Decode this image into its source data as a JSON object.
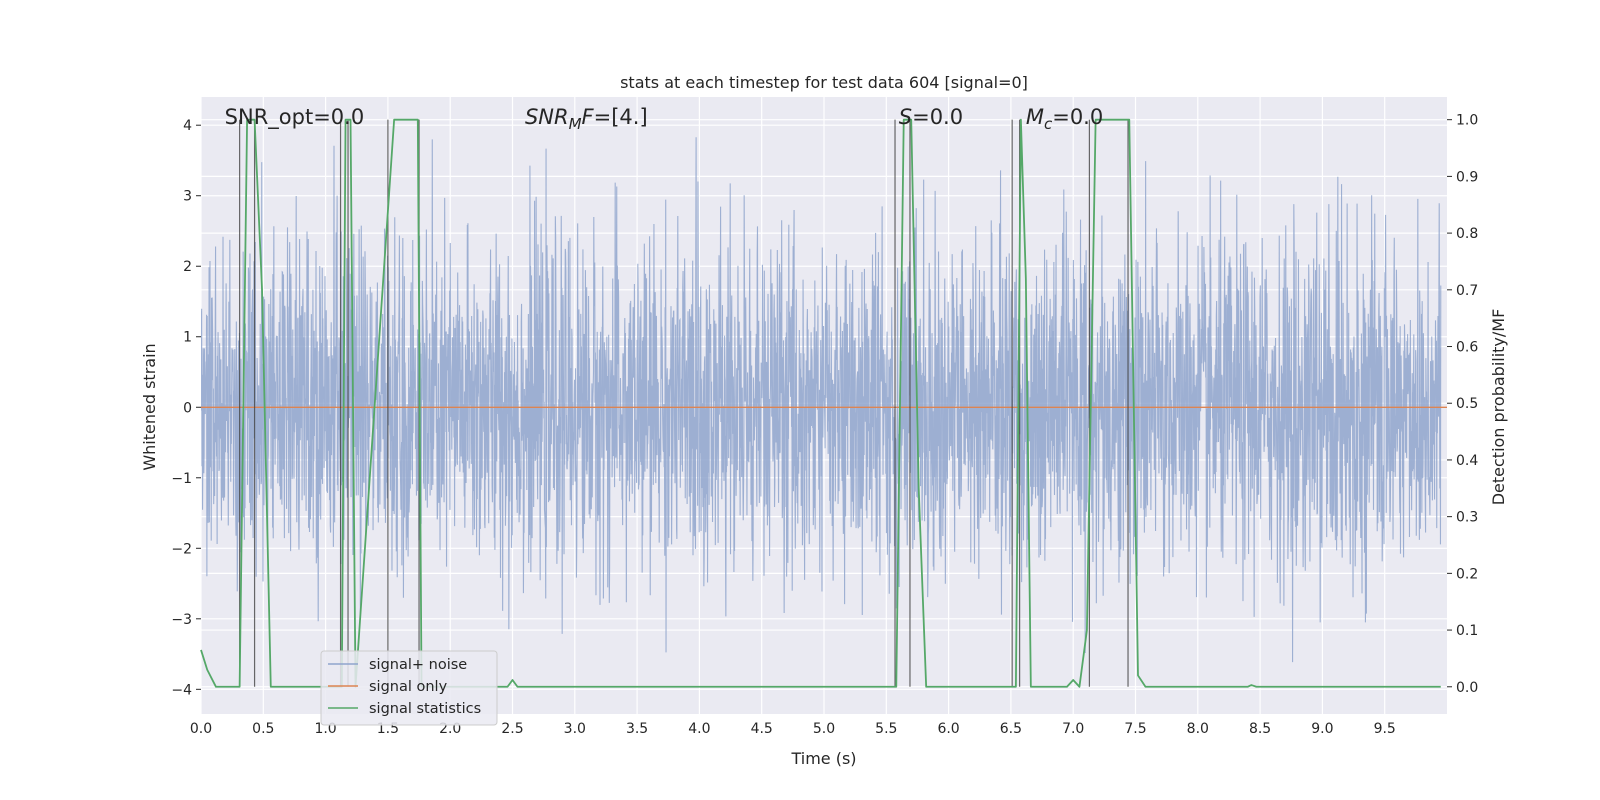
{
  "chart_data": {
    "type": "line",
    "title": "stats at each timestep for test data 604 [signal=0]",
    "xlabel": "Time (s)",
    "ylabel": "Whitened strain",
    "y2label": "Detection probability/MF",
    "xlim": [
      0.0,
      10.0
    ],
    "ylim": [
      -4.35,
      4.4
    ],
    "y2lim": [
      -0.048,
      1.04
    ],
    "grid": true,
    "legend_position": "lower-left",
    "x_ticks": [
      "0.0",
      "0.5",
      "1.0",
      "1.5",
      "2.0",
      "2.5",
      "3.0",
      "3.5",
      "4.0",
      "4.5",
      "5.0",
      "5.5",
      "6.0",
      "6.5",
      "7.0",
      "7.5",
      "8.0",
      "8.5",
      "9.0",
      "9.5"
    ],
    "y_ticks": [
      "4",
      "3",
      "2",
      "1",
      "0",
      "−1",
      "−2",
      "−3",
      "−4"
    ],
    "y2_ticks": [
      "1.0",
      "0.9",
      "0.8",
      "0.7",
      "0.6",
      "0.5",
      "0.4",
      "0.3",
      "0.2",
      "0.1",
      "0.0"
    ],
    "annotations": [
      {
        "text": "SNR_opt=0.0",
        "x": 0.19
      },
      {
        "text": "SNR_MF=[4.]",
        "x": 2.6
      },
      {
        "text": "S=0.0",
        "x": 5.6
      },
      {
        "text": "M_c=0.0",
        "x": 6.62
      }
    ],
    "series": [
      {
        "name": "signal+ noise",
        "color": "#8fa4cd",
        "note": "whitened strain noise, approx. standard deviation 1 with spikes up to about 4",
        "envelope": {
          "core_sigma": 1.0,
          "max_abs": 4.0
        }
      },
      {
        "name": "signal only",
        "color": "#dd8452",
        "values_constant": 0.0
      },
      {
        "name": "signal statistics",
        "color": "#55a868",
        "x": [
          0.0,
          0.05,
          0.12,
          0.31,
          0.37,
          0.43,
          0.49,
          0.56,
          1.13,
          1.16,
          1.2,
          1.24,
          1.55,
          1.74,
          1.77,
          2.46,
          2.5,
          2.54,
          5.58,
          5.64,
          5.7,
          5.76,
          5.82,
          6.54,
          6.58,
          6.62,
          6.66,
          6.95,
          7.0,
          7.05,
          7.11,
          7.18,
          7.45,
          7.52,
          7.58,
          8.4,
          8.43,
          8.47,
          9.95
        ],
        "y": [
          0.065,
          0.03,
          0.0,
          0.0,
          1.0,
          1.0,
          0.7,
          0.0,
          0.0,
          1.0,
          1.0,
          0.0,
          1.0,
          1.0,
          0.0,
          0.0,
          0.012,
          0.0,
          0.0,
          1.0,
          1.0,
          0.35,
          0.0,
          0.0,
          1.0,
          0.72,
          0.0,
          0.0,
          0.012,
          0.0,
          0.1,
          1.0,
          1.0,
          0.02,
          0.0,
          0.0,
          0.003,
          0.0,
          0.0
        ]
      }
    ],
    "vertical_lines_x": [
      0.31,
      0.43,
      1.12,
      1.18,
      1.5,
      1.75,
      5.57,
      5.69,
      6.51,
      6.57,
      7.13,
      7.44
    ]
  }
}
